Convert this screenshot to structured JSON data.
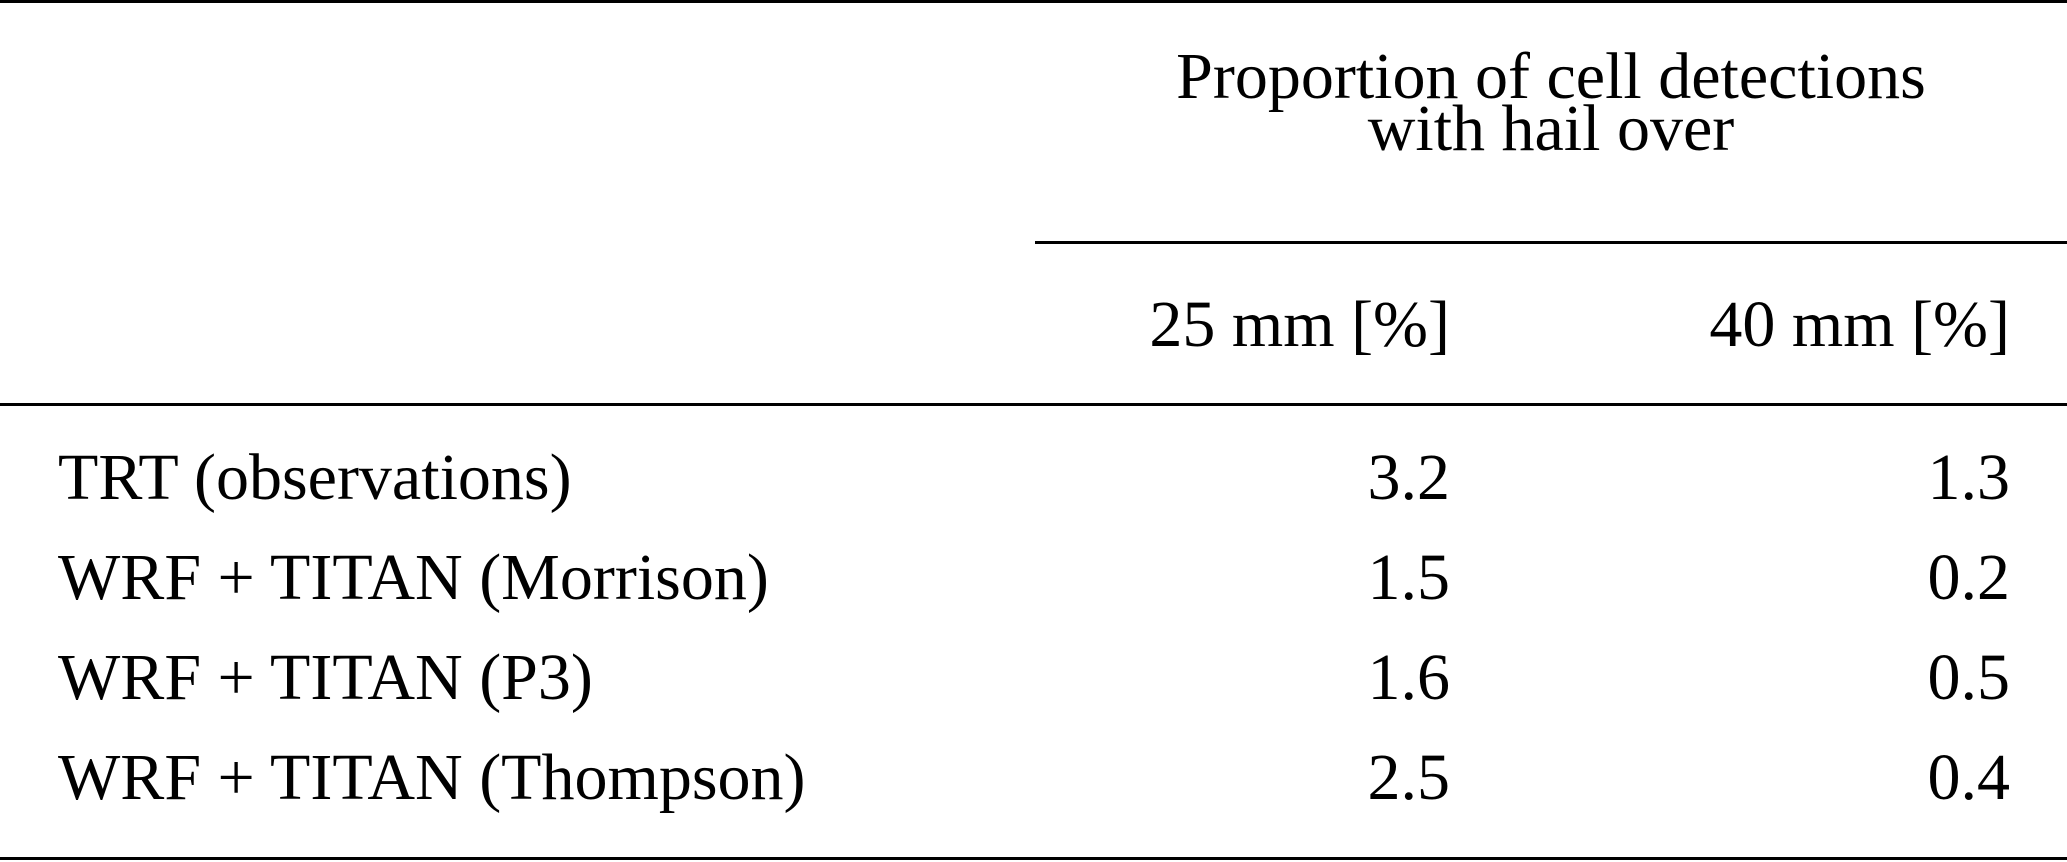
{
  "header": {
    "group_title": [
      "Proportion of cell detections",
      "with hail over"
    ],
    "columns": [
      "25 mm [%]",
      "40 mm [%]"
    ]
  },
  "table": {
    "rows": [
      [
        "TRT (observations)",
        3.2,
        1.3
      ],
      [
        "WRF + TITAN (Morrison)",
        1.5,
        0.2
      ],
      [
        "WRF + TITAN (P3)",
        1.6,
        0.5
      ],
      [
        "WRF + TITAN (Thompson)",
        2.5,
        0.4
      ]
    ]
  }
}
